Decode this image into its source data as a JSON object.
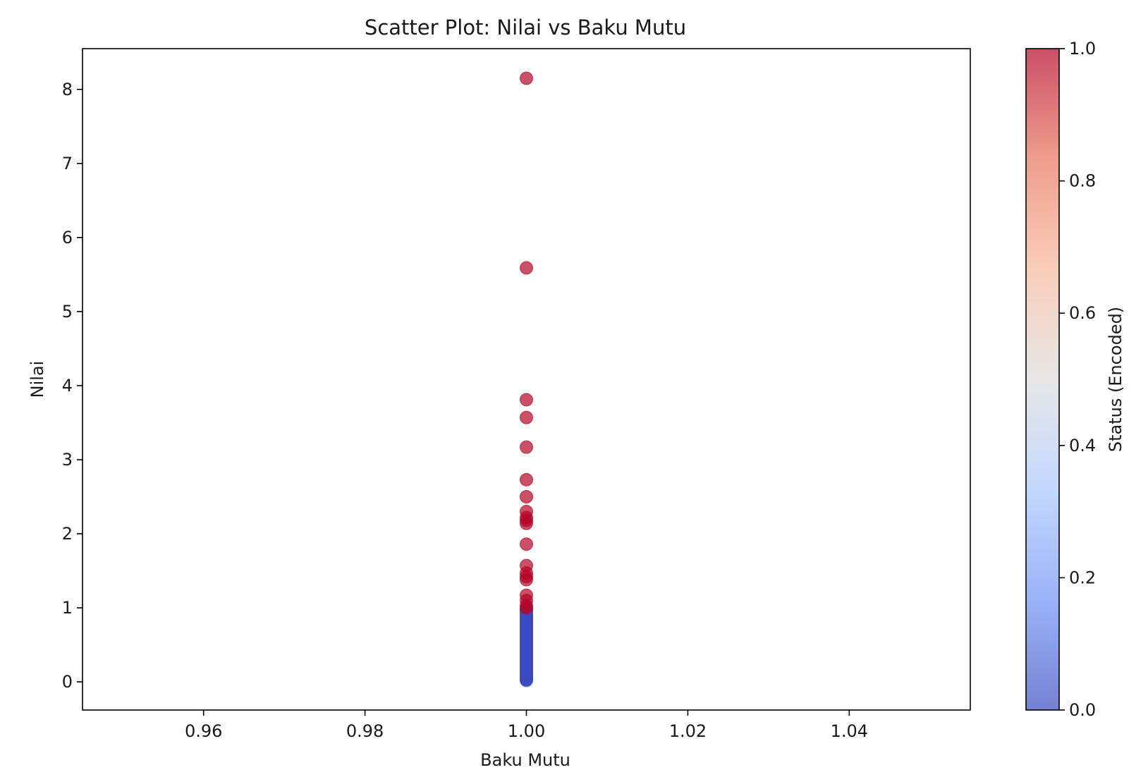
{
  "chart_data": {
    "type": "scatter",
    "title": "Scatter Plot: Nilai vs Baku Mutu",
    "xlabel": "Baku Mutu",
    "ylabel": "Nilai",
    "xlim": [
      0.945,
      1.055
    ],
    "ylim": [
      -0.38,
      8.55
    ],
    "xticks": [
      0.96,
      0.98,
      1.0,
      1.02,
      1.04
    ],
    "xtick_labels": [
      "0.96",
      "0.98",
      "1.00",
      "1.02",
      "1.04"
    ],
    "yticks": [
      0,
      1,
      2,
      3,
      4,
      5,
      6,
      7,
      8
    ],
    "ytick_labels": [
      "0",
      "1",
      "2",
      "3",
      "4",
      "5",
      "6",
      "7",
      "8"
    ],
    "grid": false,
    "colormap": "coolwarm",
    "colormap_stops": [
      "#3b4cc0",
      "#6f92f3",
      "#aac7fd",
      "#dddcdc",
      "#f7b89c",
      "#e7745b",
      "#b40426"
    ],
    "marker_alpha": 0.7,
    "colorbar": {
      "label": "Status (Encoded)",
      "range": [
        0,
        1
      ],
      "ticks": [
        0,
        0.2,
        0.4,
        0.6,
        0.8,
        1.0
      ],
      "tick_labels": [
        "0.0",
        "0.2",
        "0.4",
        "0.6",
        "0.8",
        "1.0"
      ]
    },
    "series": [
      {
        "name": "Status 1",
        "status": 1,
        "x": [
          1,
          1,
          1,
          1,
          1,
          1,
          1,
          1,
          1,
          1,
          1,
          1,
          1,
          1,
          1,
          1,
          1,
          1,
          1,
          1
        ],
        "y": [
          8.15,
          5.59,
          3.81,
          3.57,
          3.17,
          2.73,
          2.5,
          2.3,
          2.22,
          2.14,
          1.86,
          1.57,
          1.47,
          1.38,
          1.17,
          1.1,
          1.03,
          1.0,
          2.18,
          1.42
        ]
      },
      {
        "name": "Status 0",
        "status": 0,
        "x": [
          1,
          1,
          1,
          1,
          1,
          1,
          1,
          1,
          1,
          1,
          1,
          1,
          1,
          1,
          1,
          1,
          1,
          1,
          1,
          1,
          1,
          1,
          1,
          1,
          1,
          1,
          1,
          1,
          1,
          1,
          1,
          1,
          1,
          1,
          1,
          1,
          1,
          1,
          1,
          1,
          1,
          1,
          1,
          1,
          1,
          1,
          1,
          1,
          1,
          1,
          1
        ],
        "y": [
          0.98,
          0.96,
          0.94,
          0.92,
          0.9,
          0.88,
          0.86,
          0.84,
          0.82,
          0.8,
          0.78,
          0.76,
          0.74,
          0.72,
          0.7,
          0.68,
          0.66,
          0.64,
          0.62,
          0.6,
          0.58,
          0.56,
          0.54,
          0.52,
          0.5,
          0.48,
          0.46,
          0.44,
          0.42,
          0.4,
          0.38,
          0.36,
          0.34,
          0.32,
          0.3,
          0.28,
          0.26,
          0.24,
          0.22,
          0.2,
          0.18,
          0.16,
          0.14,
          0.12,
          0.1,
          0.08,
          0.06,
          0.05,
          0.04,
          0.03,
          0.02
        ]
      }
    ]
  }
}
